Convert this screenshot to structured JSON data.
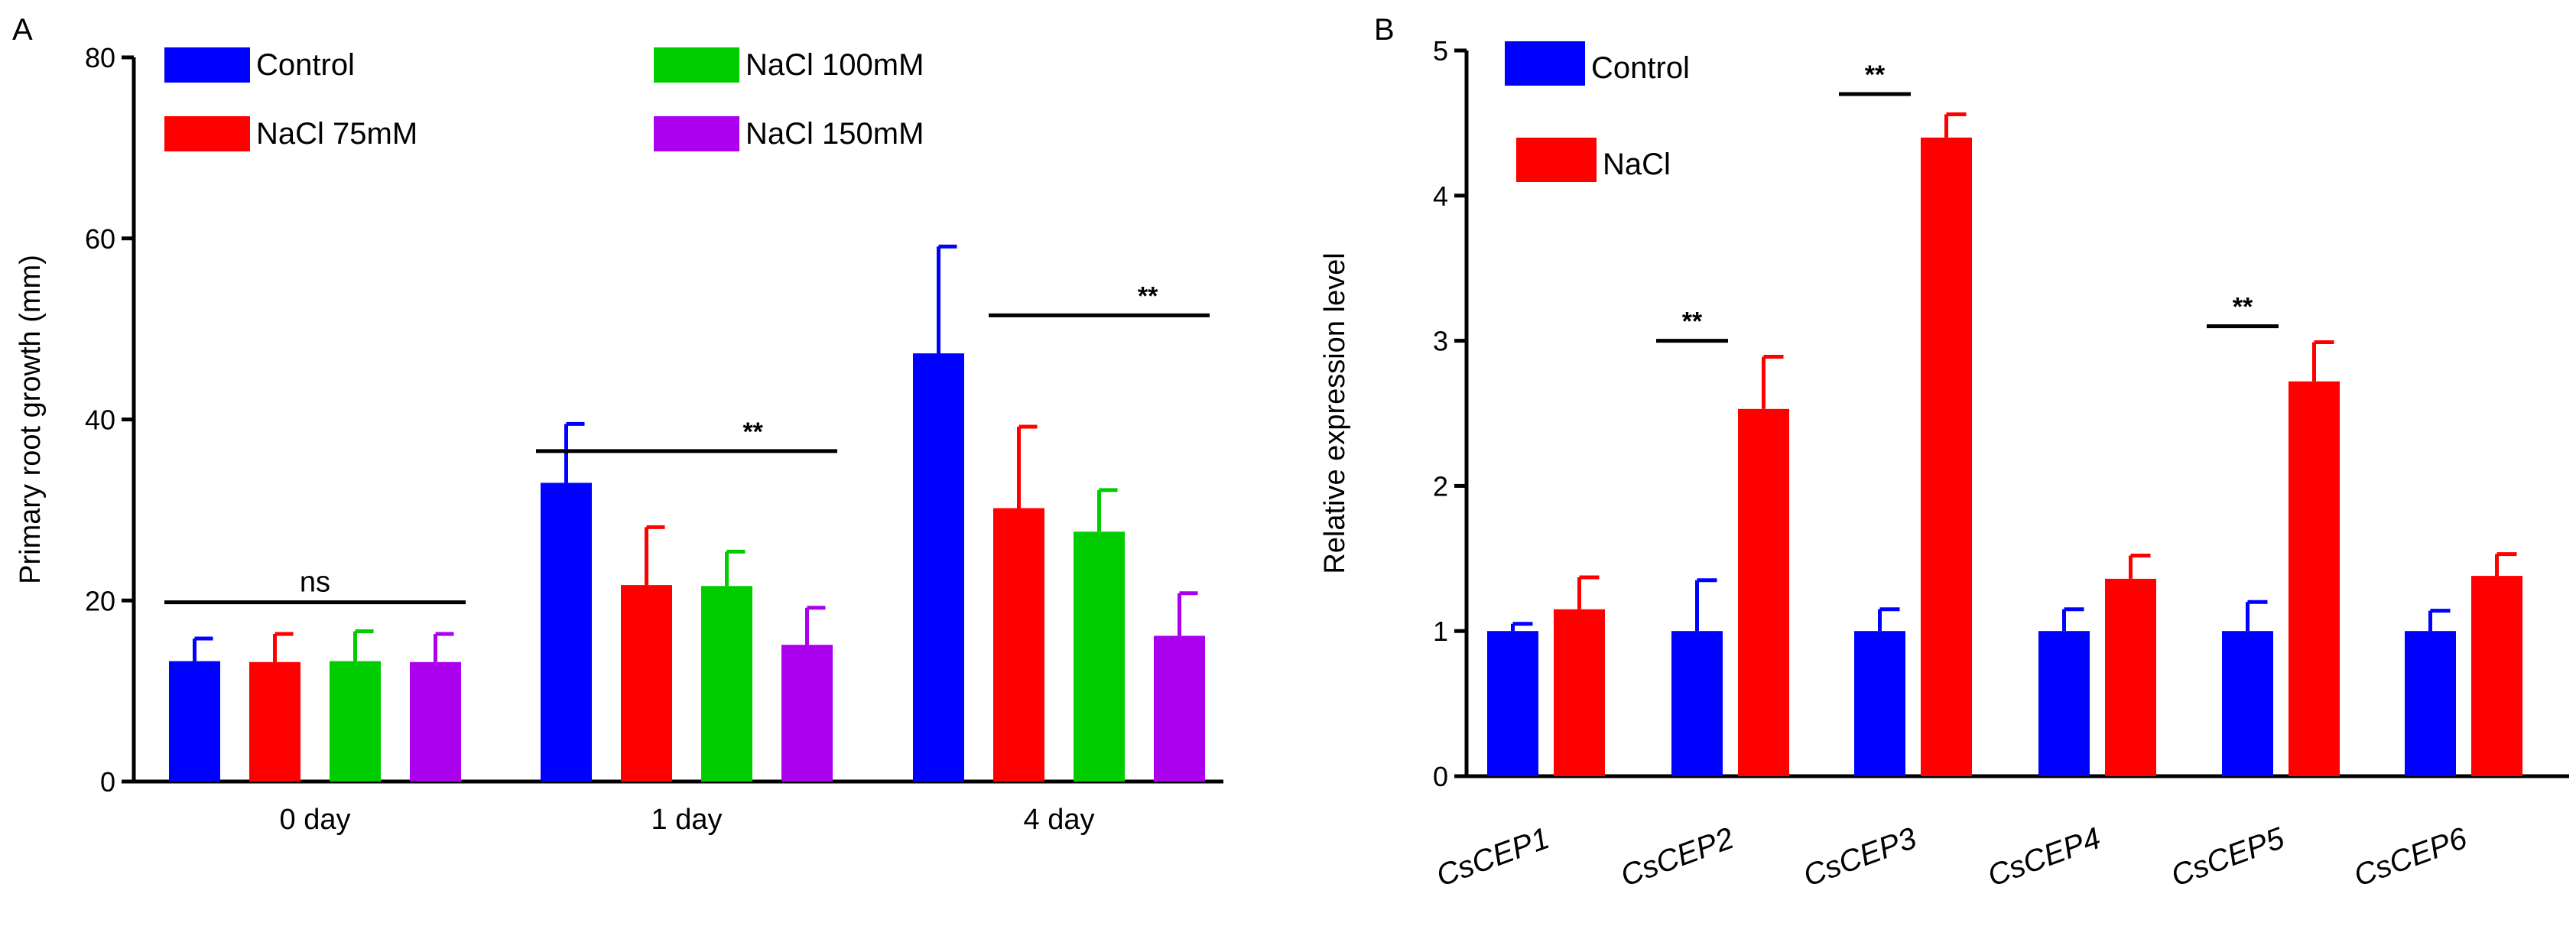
{
  "chart_data": [
    {
      "panel": "A",
      "type": "bar",
      "title": "",
      "xlabel": "",
      "ylabel": "Primary root growth (mm)",
      "ylim": [
        0,
        80
      ],
      "yticks": [
        "0",
        "20",
        "40",
        "60",
        "80"
      ],
      "categories": [
        "0 day",
        "1 day",
        "4 day"
      ],
      "legend": "top-left",
      "series": [
        {
          "name": "Control",
          "color": "#0000ff",
          "values": [
            13.3,
            33.0,
            47.3
          ],
          "errors": [
            2.5,
            6.5,
            11.8
          ]
        },
        {
          "name": "NaCl 75mM",
          "color": "#ff0000",
          "values": [
            13.2,
            21.7,
            30.2
          ],
          "errors": [
            3.1,
            6.4,
            9.0
          ]
        },
        {
          "name": "NaCl 100mM",
          "color": "#00cc00",
          "values": [
            13.3,
            21.6,
            27.6
          ],
          "errors": [
            3.3,
            3.8,
            4.6
          ]
        },
        {
          "name": "NaCl 150mM",
          "color": "#aa00ee",
          "values": [
            13.2,
            15.1,
            16.1
          ],
          "errors": [
            3.1,
            4.1,
            4.7
          ]
        }
      ],
      "annotations": [
        {
          "label": "ns",
          "category": "0 day",
          "from_series": 0,
          "to_series": 3,
          "y": 19.8
        },
        {
          "label": "**",
          "category": "1 day",
          "from_series": 0,
          "to_series": 3,
          "y": 36.5
        },
        {
          "label": "**",
          "category": "4 day",
          "from_series": 1,
          "to_series": 3,
          "y": 51.5
        }
      ]
    },
    {
      "panel": "B",
      "type": "bar",
      "title": "",
      "xlabel": "",
      "ylabel": "Relative expression level",
      "ylim": [
        0,
        5
      ],
      "yticks": [
        "0",
        "1",
        "2",
        "3",
        "4",
        "5"
      ],
      "categories": [
        "CsCEP1",
        "CsCEP2",
        "CsCEP3",
        "CsCEP4",
        "CsCEP5",
        "CsCEP6"
      ],
      "legend": "top-left",
      "series": [
        {
          "name": "Control",
          "color": "#0000ff",
          "values": [
            1.0,
            1.0,
            1.0,
            1.0,
            1.0,
            1.0
          ],
          "errors": [
            0.05,
            0.35,
            0.15,
            0.15,
            0.2,
            0.14
          ]
        },
        {
          "name": "NaCl",
          "color": "#ff0000",
          "values": [
            1.15,
            2.53,
            4.4,
            1.36,
            2.72,
            1.38
          ],
          "errors": [
            0.22,
            0.36,
            0.16,
            0.16,
            0.27,
            0.15
          ]
        }
      ],
      "annotations": [
        {
          "label": "**",
          "category": "CsCEP2",
          "y": 3.0
        },
        {
          "label": "**",
          "category": "CsCEP3",
          "y": 4.7
        },
        {
          "label": "**",
          "category": "CsCEP5",
          "y": 3.1
        }
      ]
    }
  ]
}
